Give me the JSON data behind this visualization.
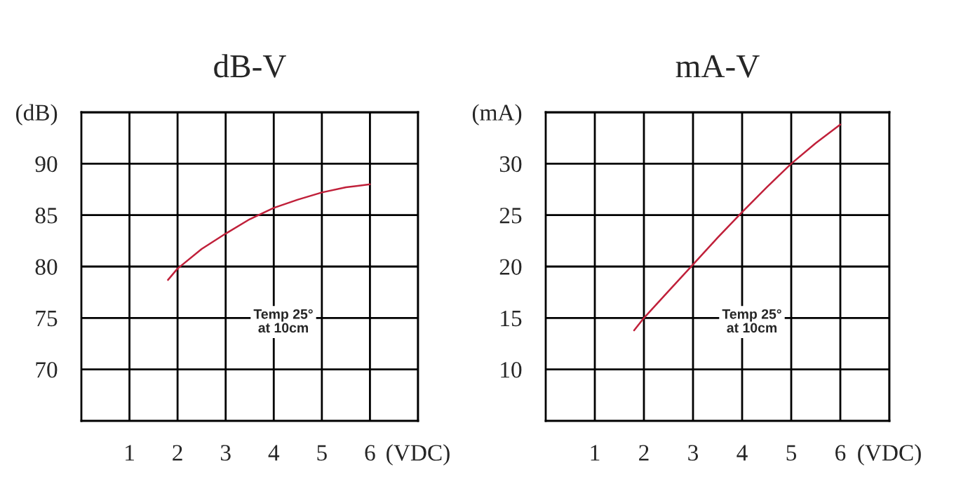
{
  "chart_data": [
    {
      "type": "line",
      "title": "dB-V",
      "x": [
        1.8,
        2,
        2.5,
        3,
        3.5,
        4,
        4.5,
        5,
        5.5,
        6
      ],
      "series": [
        {
          "color": "#c0203a",
          "values": [
            78.7,
            79.8,
            81.7,
            83.2,
            84.6,
            85.7,
            86.5,
            87.2,
            87.7,
            88.0
          ]
        }
      ],
      "xlim": [
        0,
        7
      ],
      "xticks": [
        1,
        2,
        3,
        4,
        5,
        6,
        {
          "value": 7,
          "label": "(VDC)"
        }
      ],
      "ylim": [
        65,
        95
      ],
      "yticks": [
        70,
        75,
        80,
        85,
        90,
        {
          "value": 95,
          "label": "(dB)"
        }
      ],
      "grid": true,
      "annotations": [
        "Temp 25°\nat 10cm"
      ]
    },
    {
      "type": "line",
      "title": "mA-V",
      "x": [
        1.8,
        2,
        2.5,
        3,
        3.5,
        4,
        4.5,
        5,
        5.5,
        6
      ],
      "series": [
        {
          "color": "#c0203a",
          "values": [
            13.8,
            15.0,
            17.6,
            20.2,
            22.8,
            25.3,
            27.7,
            30.0,
            32.0,
            33.8
          ]
        }
      ],
      "xlim": [
        0,
        7
      ],
      "xticks": [
        1,
        2,
        3,
        4,
        5,
        6,
        {
          "value": 7,
          "label": "(VDC)"
        }
      ],
      "ylim": [
        5,
        35
      ],
      "yticks": [
        10,
        15,
        20,
        25,
        30,
        {
          "value": 35,
          "label": "(mA)"
        }
      ],
      "grid": true,
      "annotations": [
        "Temp 25°\nat 10cm"
      ]
    }
  ]
}
